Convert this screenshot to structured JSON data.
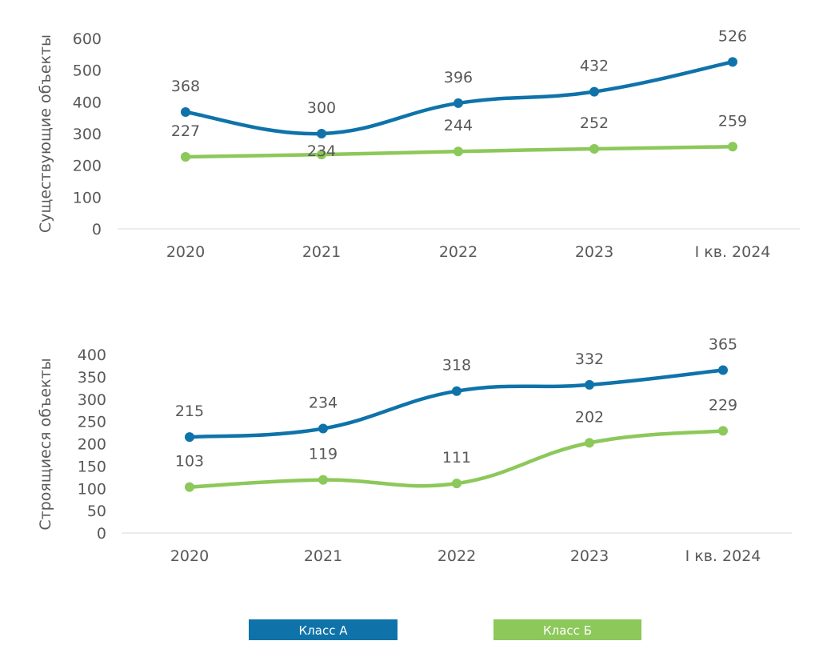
{
  "chart_data": [
    {
      "type": "line",
      "ylabel": "Существующие объекты",
      "categories": [
        "2020",
        "2021",
        "2022",
        "2023",
        "I кв. 2024"
      ],
      "ylim": [
        0,
        600
      ],
      "yticks": [
        0,
        100,
        200,
        300,
        400,
        500,
        600
      ],
      "series": [
        {
          "name": "Класс А",
          "color": "#0f73aa",
          "values": [
            368,
            300,
            396,
            432,
            526
          ]
        },
        {
          "name": "Класс Б",
          "color": "#8cc85a",
          "values": [
            227,
            234,
            244,
            252,
            259
          ]
        }
      ]
    },
    {
      "type": "line",
      "ylabel": "Строящиеся объекты",
      "categories": [
        "2020",
        "2021",
        "2022",
        "2023",
        "I кв. 2024"
      ],
      "ylim": [
        0,
        400
      ],
      "yticks": [
        0,
        50,
        100,
        150,
        200,
        250,
        300,
        350,
        400
      ],
      "series": [
        {
          "name": "Класс А",
          "color": "#0f73aa",
          "values": [
            215,
            234,
            318,
            332,
            365
          ]
        },
        {
          "name": "Класс Б",
          "color": "#8cc85a",
          "values": [
            103,
            119,
            111,
            202,
            229
          ]
        }
      ]
    }
  ],
  "legend": {
    "placement": "bottom",
    "items": [
      {
        "label": "Класс А",
        "color": "#0f73aa"
      },
      {
        "label": "Класс Б",
        "color": "#8cc85a"
      }
    ]
  }
}
